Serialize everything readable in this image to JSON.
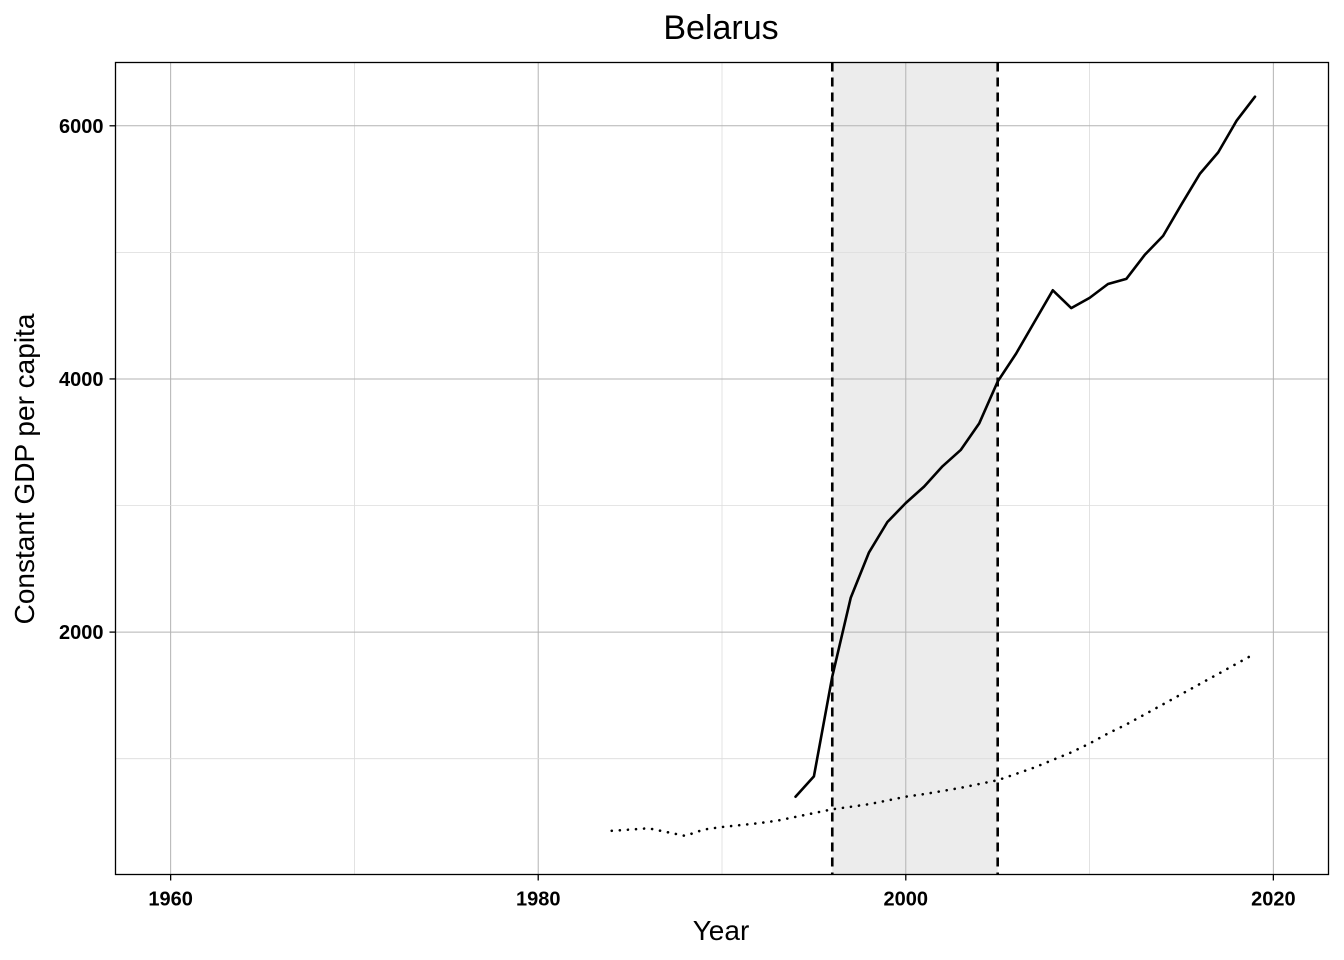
{
  "chart_data": {
    "type": "line",
    "title": "Belarus",
    "xlabel": "Year",
    "ylabel": "Constant GDP per capita",
    "xlim": [
      1957,
      2023
    ],
    "ylim": [
      85,
      6500
    ],
    "x_ticks": [
      1960,
      1980,
      2000,
      2020
    ],
    "y_ticks": [
      2000,
      4000,
      6000
    ],
    "grid": true,
    "legend": "none",
    "shaded_region": {
      "x_start": 1996,
      "x_end": 2005,
      "color": "#ececec"
    },
    "vertical_lines": [
      {
        "x": 1996,
        "style": "dashed"
      },
      {
        "x": 2005,
        "style": "dashed"
      }
    ],
    "series": [
      {
        "style": "solid",
        "color": "#000000",
        "x": [
          1994,
          1995,
          1996,
          1997,
          1998,
          1999,
          2000,
          2001,
          2002,
          2003,
          2004,
          2005,
          2006,
          2007,
          2008,
          2009,
          2010,
          2011,
          2012,
          2013,
          2014,
          2015,
          2016,
          2017,
          2018,
          2019
        ],
        "y": [
          700,
          860,
          1650,
          2270,
          2630,
          2870,
          3020,
          3150,
          3310,
          3440,
          3650,
          3980,
          4200,
          4450,
          4700,
          4560,
          4640,
          4750,
          4790,
          4980,
          5130,
          5380,
          5620,
          5790,
          6040,
          6230
        ]
      },
      {
        "style": "dotted",
        "color": "#000000",
        "x": [
          1984,
          1985,
          1986,
          1987,
          1988,
          1989,
          1990,
          1991,
          1992,
          1993,
          1994,
          1995,
          1996,
          1997,
          1998,
          1999,
          2000,
          2001,
          2002,
          2003,
          2004,
          2005,
          2006,
          2007,
          2008,
          2009,
          2010,
          2011,
          2012,
          2013,
          2014,
          2015,
          2016,
          2017,
          2018,
          2019
        ],
        "y": [
          430,
          440,
          450,
          420,
          390,
          440,
          460,
          475,
          490,
          510,
          540,
          570,
          600,
          620,
          640,
          670,
          700,
          720,
          745,
          770,
          800,
          830,
          880,
          930,
          990,
          1050,
          1120,
          1200,
          1270,
          1350,
          1430,
          1510,
          1590,
          1670,
          1750,
          1830
        ]
      }
    ]
  }
}
